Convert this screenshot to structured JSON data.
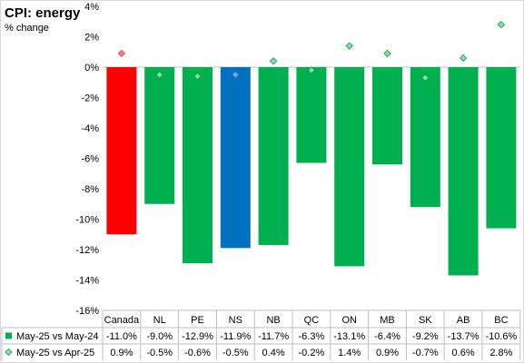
{
  "chart_data": {
    "type": "bar",
    "title": "CPI: energy",
    "subtitle": "% change",
    "categories": [
      "Canada",
      "NL",
      "PE",
      "NS",
      "NB",
      "QC",
      "ON",
      "MB",
      "SK",
      "AB",
      "BC"
    ],
    "series": [
      {
        "name": "May-25 vs May-24",
        "kind": "bar",
        "values": [
          -11.0,
          -9.0,
          -12.9,
          -11.9,
          -11.7,
          -6.3,
          -13.1,
          -6.4,
          -9.2,
          -13.7,
          -10.6
        ],
        "labels": [
          "-11.0%",
          "-9.0%",
          "-12.9%",
          "-11.9%",
          "-11.7%",
          "-6.3%",
          "-13.1%",
          "-6.4%",
          "-9.2%",
          "-13.7%",
          "-10.6%"
        ]
      },
      {
        "name": "May-25 vs Apr-25",
        "kind": "marker",
        "values": [
          0.9,
          -0.5,
          -0.6,
          -0.5,
          0.4,
          -0.2,
          1.4,
          0.9,
          -0.7,
          0.6,
          2.8
        ],
        "labels": [
          "0.9%",
          "-0.5%",
          "-0.6%",
          "-0.5%",
          "0.4%",
          "-0.2%",
          "1.4%",
          "0.9%",
          "-0.7%",
          "0.6%",
          "2.8%"
        ]
      }
    ],
    "ylim": [
      -16,
      4
    ],
    "yticks": [
      4,
      2,
      0,
      -2,
      -4,
      -6,
      -8,
      -10,
      -12,
      -14,
      -16
    ],
    "ytick_labels": [
      "4%",
      "2%",
      "0%",
      "-2%",
      "-4%",
      "-6%",
      "-8%",
      "-10%",
      "-12%",
      "-14%",
      "-16%"
    ],
    "grid": false,
    "legend": "bottom-left data table",
    "colors": {
      "bar_default": "#00b050",
      "bar_canada": "#ff0000",
      "bar_ns": "#0070c0",
      "marker_default": "#92d7a4",
      "marker_canada": "#f47c7c",
      "marker_ns": "#7fa6d8",
      "marker_edge": "#00a651"
    }
  }
}
